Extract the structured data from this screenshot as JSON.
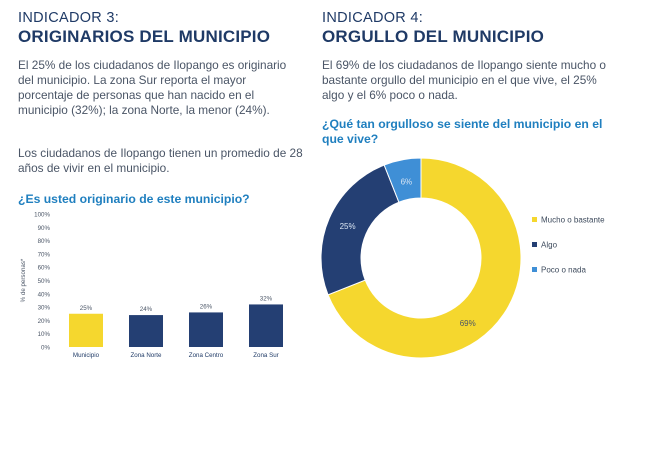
{
  "indicator3": {
    "label": "INDICADOR 3:",
    "title": "ORIGINARIOS DEL MUNICIPIO",
    "paragraph1": "El 25% de los ciudadanos de Ilopango es originario del municipio. La zona Sur reporta el mayor porcentaje de personas que han nacido en el municipio (32%); la zona Norte, la menor (24%).",
    "paragraph2": "Los ciudadanos de Ilopango tienen un promedio de 28 años de vivir en el municipio.",
    "question": "¿Es usted originario de este municipio?"
  },
  "indicator4": {
    "label": "INDICADOR 4:",
    "title": "ORGULLO DEL MUNICIPIO",
    "paragraph1": "El 69% de los ciudadanos de Ilopango siente mucho o bastante orgullo del municipio en el que vive, el 25% algo y el 6% poco o nada.",
    "question": "¿Qué tan orgulloso se siente del municipio en el que vive?"
  },
  "colors": {
    "navy": "#1f3a66",
    "question_blue": "#1f7fbf",
    "bar_first": "#f5d72e",
    "bar_rest": "#243f73",
    "pie_yellow": "#f5d72e",
    "pie_navy": "#243f73",
    "pie_blue": "#3f8fd6"
  },
  "chart_data": [
    {
      "type": "bar",
      "ylabel": "% de personas*",
      "categories": [
        "Municipio",
        "Zona Norte",
        "Zona Centro",
        "Zona Sur"
      ],
      "values": [
        25,
        24,
        26,
        32
      ],
      "value_labels": [
        "25%",
        "24%",
        "26%",
        "32%"
      ],
      "ylim": [
        0,
        100
      ],
      "yticks": [
        "0%",
        "10%",
        "20%",
        "30%",
        "40%",
        "50%",
        "60%",
        "70%",
        "80%",
        "90%",
        "100%"
      ],
      "grid": false
    },
    {
      "type": "pie",
      "donut": true,
      "slices": [
        {
          "label": "Mucho o bastante",
          "value": 69,
          "value_label": "69%",
          "color": "#f5d72e"
        },
        {
          "label": "Algo",
          "value": 25,
          "value_label": "25%",
          "color": "#243f73"
        },
        {
          "label": "Poco o nada",
          "value": 6,
          "value_label": "6%",
          "color": "#3f8fd6"
        }
      ],
      "legend_position": "right"
    }
  ]
}
